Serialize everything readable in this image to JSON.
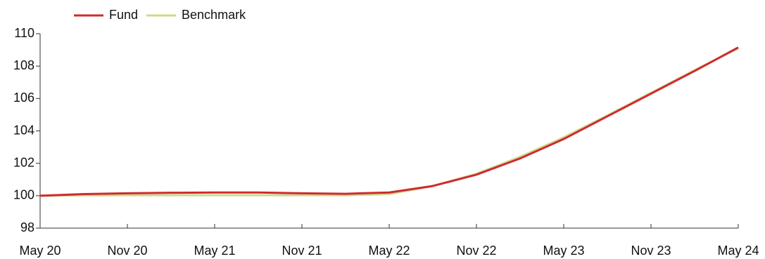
{
  "chart_data": {
    "type": "line",
    "categories": [
      "May 20",
      null,
      "Nov 20",
      null,
      "May 21",
      null,
      "Nov 21",
      null,
      "May 22",
      null,
      "Nov 22",
      null,
      "May 23",
      null,
      "Nov 23",
      null,
      "May 24"
    ],
    "series": [
      {
        "name": "Fund",
        "color": "#d12a2f",
        "values": [
          100.0,
          100.1,
          100.15,
          100.18,
          100.2,
          100.2,
          100.15,
          100.12,
          100.2,
          100.6,
          101.3,
          102.3,
          103.5,
          104.9,
          106.3,
          107.7,
          109.15
        ]
      },
      {
        "name": "Benchmark",
        "color": "#c8dc8a",
        "values": [
          100.0,
          100.02,
          100.03,
          100.03,
          100.03,
          100.03,
          100.03,
          100.03,
          100.1,
          100.6,
          101.35,
          102.4,
          103.6,
          104.95,
          106.35,
          107.75,
          109.1
        ]
      }
    ],
    "ylim": [
      98,
      110
    ],
    "yticks": [
      98,
      100,
      102,
      104,
      106,
      108,
      110
    ],
    "legend": "top-left"
  }
}
